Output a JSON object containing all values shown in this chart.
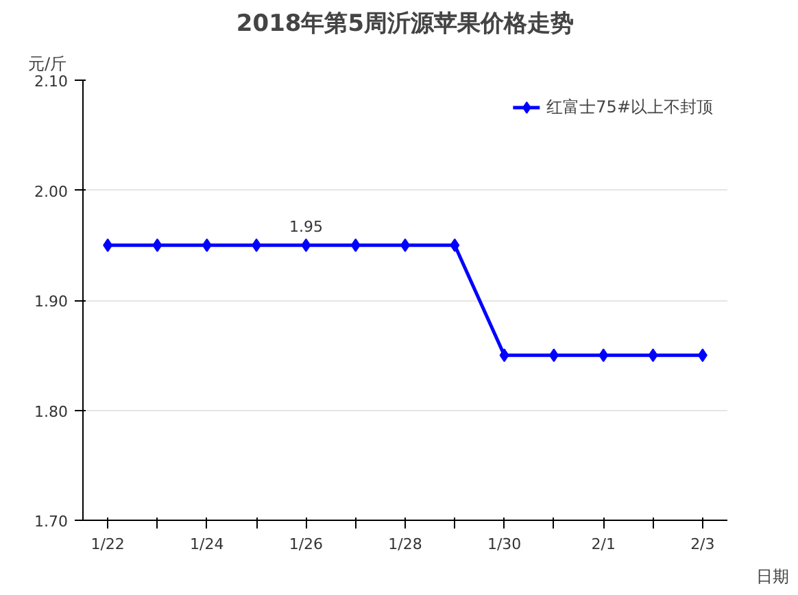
{
  "chart_data": {
    "type": "line",
    "title": "2018年第5周沂源苹果价格走势",
    "ylabel": "元/斤",
    "xlabel": "日期",
    "categories": [
      "1/22",
      null,
      "1/24",
      null,
      "1/26",
      null,
      "1/28",
      null,
      "1/30",
      null,
      "2/1",
      null,
      "2/3"
    ],
    "series": [
      {
        "name": "红富士75#以上不封顶",
        "color": "#0000ff",
        "values": [
          1.95,
          1.95,
          1.95,
          1.95,
          1.95,
          1.95,
          1.95,
          1.95,
          1.85,
          1.85,
          1.85,
          1.85,
          1.85
        ],
        "value_labels": [
          null,
          null,
          null,
          null,
          "1.95",
          null,
          null,
          null,
          null,
          null,
          null,
          null,
          null
        ]
      }
    ],
    "ylim": [
      1.7,
      2.1
    ],
    "yticks": [
      {
        "value": 1.7,
        "label": "1.70"
      },
      {
        "value": 1.8,
        "label": "1.80"
      },
      {
        "value": 1.9,
        "label": "1.90"
      },
      {
        "value": 2.0,
        "label": "2.00"
      },
      {
        "value": 2.1,
        "label": "2.10"
      }
    ],
    "grid": "y",
    "legend": "top right",
    "marker": "diamond",
    "line_style": "solid"
  }
}
